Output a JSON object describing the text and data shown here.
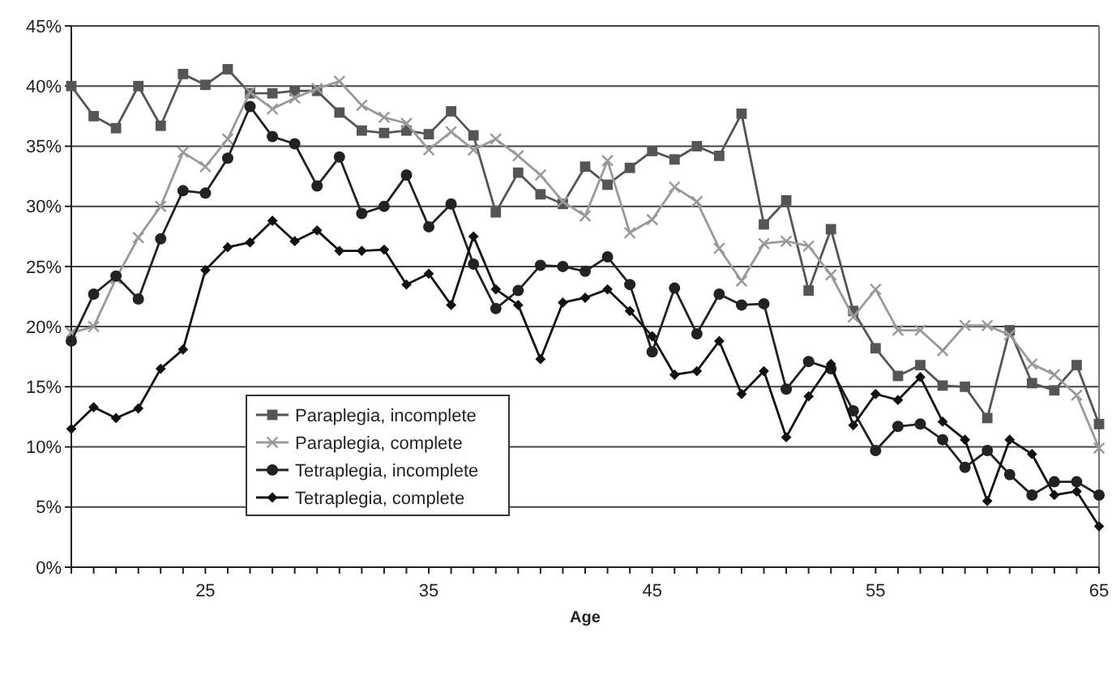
{
  "chart_data": {
    "type": "line",
    "xlabel": "Age",
    "x": [
      19,
      20,
      21,
      22,
      23,
      24,
      25,
      26,
      27,
      28,
      29,
      30,
      31,
      32,
      33,
      34,
      35,
      36,
      37,
      38,
      39,
      40,
      41,
      42,
      43,
      44,
      45,
      46,
      47,
      48,
      49,
      50,
      51,
      52,
      53,
      54,
      55,
      56,
      57,
      58,
      59,
      60,
      61,
      62,
      63,
      64,
      65
    ],
    "series": [
      {
        "name": "Paraplegia, incomplete",
        "color": "#555555",
        "marker": "square",
        "values": [
          40,
          37.5,
          36.5,
          40,
          36.7,
          41,
          40.1,
          41.4,
          39.4,
          39.4,
          39.6,
          39.6,
          37.8,
          36.3,
          36.1,
          36.3,
          36.0,
          37.9,
          35.9,
          29.5,
          32.8,
          31.0,
          30.2,
          33.3,
          31.8,
          33.2,
          34.6,
          33.9,
          35,
          34.2,
          37.7,
          28.5,
          30.5,
          23,
          28.1,
          21.3,
          18.2,
          15.9,
          16.8,
          15.1,
          15,
          12.4,
          19.7,
          15.3,
          14.7,
          16.8,
          11.9
        ]
      },
      {
        "name": "Paraplegia, complete",
        "color": "#999999",
        "marker": "cross",
        "values": [
          19.5,
          20,
          24,
          27.4,
          30,
          34.5,
          33.3,
          35.6,
          39.5,
          38.1,
          39,
          39.8,
          40.4,
          38.4,
          37.4,
          36.9,
          34.7,
          36.2,
          34.7,
          35.6,
          34.2,
          32.6,
          30.4,
          29.2,
          33.8,
          27.8,
          28.9,
          31.6,
          30.4,
          26.5,
          23.8,
          26.9,
          27.1,
          26.7,
          24.3,
          20.8,
          23.1,
          19.7,
          19.7,
          18,
          20.1,
          20.1,
          19.3,
          16.9,
          16,
          14.3,
          9.9
        ]
      },
      {
        "name": "Tetraplegia, incomplete",
        "color": "#222222",
        "marker": "circle",
        "values": [
          18.8,
          22.7,
          24.2,
          22.3,
          27.3,
          31.3,
          31.1,
          34,
          38.3,
          35.8,
          35.2,
          31.7,
          34.1,
          29.4,
          30,
          32.6,
          28.3,
          30.2,
          25.2,
          21.5,
          23,
          25.1,
          25,
          24.6,
          25.8,
          23.5,
          17.9,
          23.2,
          19.4,
          22.7,
          21.8,
          21.9,
          14.8,
          17.1,
          16.5,
          13,
          9.7,
          11.7,
          11.9,
          10.6,
          8.3,
          9.7,
          7.7,
          6,
          7.1,
          7.1,
          6
        ]
      },
      {
        "name": "Tetraplegia, complete",
        "color": "#111111",
        "marker": "diamond",
        "values": [
          11.5,
          13.3,
          12.4,
          13.2,
          16.5,
          18.1,
          24.7,
          26.6,
          27,
          28.8,
          27.1,
          28,
          26.3,
          26.3,
          26.4,
          23.5,
          24.4,
          21.8,
          27.5,
          23.1,
          21.8,
          17.3,
          22,
          22.4,
          23.1,
          21.3,
          19.2,
          16,
          16.3,
          18.8,
          14.4,
          16.3,
          10.8,
          14.2,
          16.9,
          11.8,
          14.4,
          13.9,
          15.8,
          12.1,
          10.6,
          5.5,
          10.6,
          9.4,
          6,
          6.3,
          3.4
        ]
      }
    ],
    "xlim": [
      19,
      65
    ],
    "xticks": [
      {
        "value": 19,
        "label": null
      },
      {
        "value": 20,
        "label": null
      },
      {
        "value": 21,
        "label": null
      },
      {
        "value": 22,
        "label": null
      },
      {
        "value": 23,
        "label": null
      },
      {
        "value": 24,
        "label": null
      },
      25,
      {
        "value": 26,
        "label": null
      },
      {
        "value": 27,
        "label": null
      },
      {
        "value": 28,
        "label": null
      },
      {
        "value": 29,
        "label": null
      },
      {
        "value": 30,
        "label": null
      },
      {
        "value": 31,
        "label": null
      },
      {
        "value": 32,
        "label": null
      },
      {
        "value": 33,
        "label": null
      },
      {
        "value": 34,
        "label": null
      },
      35,
      {
        "value": 36,
        "label": null
      },
      {
        "value": 37,
        "label": null
      },
      {
        "value": 38,
        "label": null
      },
      {
        "value": 39,
        "label": null
      },
      {
        "value": 40,
        "label": null
      },
      {
        "value": 41,
        "label": null
      },
      {
        "value": 42,
        "label": null
      },
      {
        "value": 43,
        "label": null
      },
      {
        "value": 44,
        "label": null
      },
      45,
      {
        "value": 46,
        "label": null
      },
      {
        "value": 47,
        "label": null
      },
      {
        "value": 48,
        "label": null
      },
      {
        "value": 49,
        "label": null
      },
      {
        "value": 50,
        "label": null
      },
      {
        "value": 51,
        "label": null
      },
      {
        "value": 52,
        "label": null
      },
      {
        "value": 53,
        "label": null
      },
      {
        "value": 54,
        "label": null
      },
      55,
      {
        "value": 56,
        "label": null
      },
      {
        "value": 57,
        "label": null
      },
      {
        "value": 58,
        "label": null
      },
      {
        "value": 59,
        "label": null
      },
      {
        "value": 60,
        "label": null
      },
      {
        "value": 61,
        "label": null
      },
      {
        "value": 62,
        "label": null
      },
      {
        "value": 63,
        "label": null
      },
      {
        "value": 64,
        "label": null
      },
      65
    ],
    "ylim": [
      0,
      45
    ],
    "yticks": [
      {
        "value": 0,
        "label": "0%"
      },
      {
        "value": 5,
        "label": "5%"
      },
      {
        "value": 10,
        "label": "10%"
      },
      {
        "value": 15,
        "label": "15%"
      },
      {
        "value": 20,
        "label": "20%"
      },
      {
        "value": 25,
        "label": "25%"
      },
      {
        "value": 30,
        "label": "30%"
      },
      {
        "value": 35,
        "label": "35%"
      },
      {
        "value": 40,
        "label": "40%"
      },
      {
        "value": 45,
        "label": "45%"
      }
    ],
    "grid": "y",
    "legend": "bottom left"
  }
}
